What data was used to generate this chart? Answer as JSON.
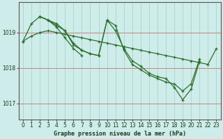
{
  "title": "Graphe pression niveau de la mer (hPa)",
  "bg_color": "#ceecea",
  "grid_color_major": "#b0d8cc",
  "grid_color_minor": "#c8ebe4",
  "line_color": "#2d6e2d",
  "xlim": [
    -0.5,
    23.5
  ],
  "ylim": [
    1016.55,
    1019.85
  ],
  "yticks": [
    1017,
    1018,
    1019
  ],
  "xticks": [
    0,
    1,
    2,
    3,
    4,
    5,
    6,
    7,
    8,
    9,
    10,
    11,
    12,
    13,
    14,
    15,
    16,
    17,
    18,
    19,
    20,
    21,
    22,
    23
  ],
  "series": [
    {
      "x": [
        0,
        1,
        2,
        3,
        4,
        5,
        6,
        7,
        8,
        9,
        10,
        11,
        12,
        13,
        14,
        15,
        16,
        17,
        18,
        19,
        20,
        21,
        22,
        23
      ],
      "y": [
        1018.75,
        1018.9,
        1019.0,
        1019.05,
        1019.0,
        1018.95,
        1018.9,
        1018.85,
        1018.8,
        1018.75,
        1018.7,
        1018.65,
        1018.6,
        1018.55,
        1018.5,
        1018.45,
        1018.4,
        1018.35,
        1018.3,
        1018.25,
        1018.2,
        1018.15,
        1018.1,
        1018.55
      ]
    },
    {
      "x": [
        0,
        1,
        2,
        3,
        4,
        5,
        6,
        7,
        8,
        9,
        10,
        11,
        12,
        13,
        14,
        15,
        16,
        17,
        18,
        19,
        20,
        21
      ],
      "y": [
        1018.75,
        1019.25,
        1019.45,
        1019.35,
        1019.25,
        1019.05,
        1018.65,
        1018.5,
        1018.4,
        1018.35,
        1019.35,
        1019.05,
        1018.55,
        1018.2,
        1018.05,
        1017.85,
        1017.75,
        1017.7,
        1017.45,
        1017.1,
        1017.4,
        1018.2
      ]
    },
    {
      "x": [
        2,
        3,
        4,
        5,
        6,
        7
      ],
      "y": [
        1019.45,
        1019.35,
        1019.15,
        1018.85,
        1018.55,
        1018.35
      ]
    },
    {
      "x": [
        2,
        3,
        4,
        5,
        6,
        7,
        8,
        9,
        10,
        11,
        12,
        13,
        14,
        15,
        16,
        17,
        18,
        19,
        20,
        21
      ],
      "y": [
        1019.45,
        1019.35,
        1019.2,
        1019.05,
        1018.7,
        1018.5,
        1018.4,
        1018.35,
        1019.35,
        1019.2,
        1018.5,
        1018.1,
        1017.95,
        1017.8,
        1017.7,
        1017.6,
        1017.55,
        1017.35,
        1017.55,
        1018.25
      ]
    }
  ]
}
